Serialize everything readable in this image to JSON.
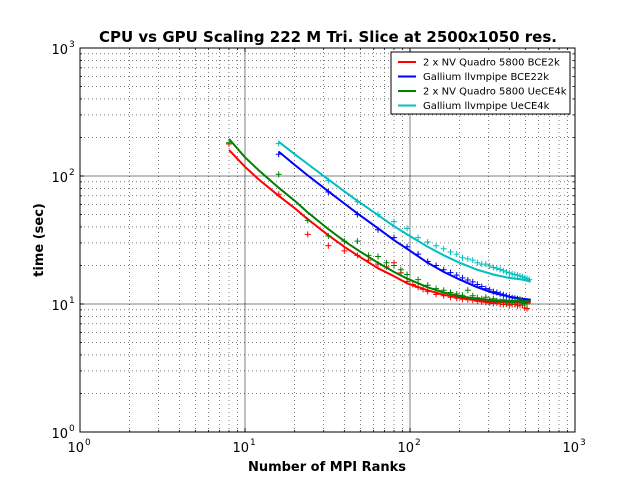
{
  "chart_data": {
    "type": "line",
    "title": "CPU vs GPU Scaling 222 M Tri. Slice at 2500x1050 res.",
    "xlabel": "Number of MPI Ranks",
    "ylabel": "time (sec)",
    "xscale": "log",
    "yscale": "log",
    "xlim": [
      1,
      1000
    ],
    "ylim": [
      1,
      1000
    ],
    "x_ticks": [
      {
        "base": "10",
        "exp": "0",
        "value": 1
      },
      {
        "base": "10",
        "exp": "1",
        "value": 10
      },
      {
        "base": "10",
        "exp": "2",
        "value": 100
      },
      {
        "base": "10",
        "exp": "3",
        "value": 1000
      }
    ],
    "y_ticks": [
      {
        "base": "10",
        "exp": "0",
        "value": 1
      },
      {
        "base": "10",
        "exp": "1",
        "value": 10
      },
      {
        "base": "10",
        "exp": "2",
        "value": 100
      },
      {
        "base": "10",
        "exp": "3",
        "value": 1000
      }
    ],
    "grid": {
      "major": true,
      "minor": true
    },
    "legend_position": "top-right",
    "series": [
      {
        "name": "2 x NV Quadro 5800 BCE2k",
        "color": "#ff0000",
        "x": [
          8,
          10,
          12,
          16,
          20,
          24,
          32,
          40,
          48,
          64,
          80,
          96,
          128,
          160,
          200,
          256,
          320,
          400,
          480,
          540
        ],
        "y": [
          160,
          118,
          95,
          70,
          56,
          46,
          34.5,
          28,
          24,
          19,
          16.5,
          14.5,
          12.8,
          11.8,
          11.2,
          10.7,
          10.4,
          10.3,
          10.3,
          10.3
        ],
        "markers": {
          "x": [
            8,
            16,
            24,
            32,
            40,
            48,
            56,
            64,
            72,
            80,
            88,
            96,
            104,
            112,
            120,
            128,
            144,
            160,
            176,
            192,
            208,
            224,
            240,
            256,
            272,
            288,
            304,
            320,
            336,
            352,
            368,
            384,
            400,
            416,
            432,
            448,
            464,
            480,
            496,
            512
          ],
          "y": [
            178,
            72,
            35,
            28.5,
            26,
            24,
            22,
            20.5,
            19.5,
            21,
            17.5,
            15,
            14.2,
            13.5,
            13,
            12.5,
            11.9,
            11.6,
            11.3,
            11.1,
            10.9,
            10.8,
            10.7,
            10.5,
            10.4,
            10.3,
            10.2,
            10.1,
            10.2,
            10,
            9.9,
            10,
            9.8,
            9.9,
            9.9,
            9.7,
            9.8,
            9.8,
            9.3,
            9.2
          ]
        }
      },
      {
        "name": "Gallium llvmpipe BCE22k",
        "color": "#0000ff",
        "x": [
          16,
          20,
          24,
          32,
          40,
          48,
          64,
          80,
          96,
          128,
          160,
          200,
          256,
          320,
          400,
          480,
          540
        ],
        "y": [
          155,
          122,
          101,
          76,
          61,
          51,
          39,
          31.5,
          27,
          21,
          17.8,
          15.5,
          13.5,
          12.2,
          11.4,
          11,
          10.8
        ],
        "markers": {
          "x": [
            16,
            32,
            48,
            64,
            80,
            96,
            112,
            128,
            144,
            160,
            176,
            192,
            208,
            224,
            240,
            256,
            272,
            288,
            304,
            320,
            336,
            352,
            368,
            384,
            400,
            416,
            432,
            448,
            464,
            480,
            496,
            512
          ],
          "y": [
            148,
            75,
            50,
            38,
            33,
            28,
            24.5,
            21.5,
            20,
            18.5,
            17.6,
            16.8,
            16,
            15.4,
            14.9,
            14.2,
            13.7,
            13.2,
            12.9,
            12.5,
            12.3,
            12,
            11.8,
            11.6,
            11.4,
            11.2,
            11.1,
            11,
            10.8,
            10.7,
            10.6,
            10.5
          ]
        }
      },
      {
        "name": "2 x NV Quadro 5800 UeCE4k",
        "color": "#008000",
        "x": [
          8,
          10,
          12,
          16,
          20,
          24,
          32,
          40,
          48,
          64,
          80,
          96,
          128,
          160,
          200,
          256,
          320,
          400,
          480,
          540
        ],
        "y": [
          195,
          140,
          112,
          81,
          64,
          52,
          38.5,
          31,
          26.5,
          21,
          17.8,
          15.8,
          13.5,
          12.3,
          11.5,
          11,
          10.7,
          10.6,
          10.5,
          10.5
        ],
        "markers": {
          "x": [
            8,
            16,
            24,
            32,
            40,
            48,
            56,
            64,
            72,
            80,
            88,
            96,
            112,
            128,
            144,
            160,
            176,
            192,
            208,
            224,
            240,
            256,
            272,
            288,
            304,
            320,
            336,
            352,
            368,
            384,
            400,
            416,
            432,
            448,
            464,
            480,
            496,
            512
          ],
          "y": [
            182,
            103,
            45,
            34,
            31,
            31,
            24,
            23.5,
            21,
            20,
            18.5,
            17,
            15.5,
            14,
            13.2,
            12.8,
            12.3,
            12,
            11.7,
            12.8,
            11.6,
            11.2,
            11,
            11.3,
            10.8,
            11,
            10.6,
            10.5,
            10.8,
            10.4,
            10.6,
            10.3,
            10.5,
            10.4,
            10.9,
            10.2,
            10.1,
            10
          ]
        }
      },
      {
        "name": "Gallium llvmpipe UeCE4k",
        "color": "#00bfbf",
        "x": [
          16,
          20,
          24,
          32,
          40,
          48,
          64,
          80,
          96,
          128,
          160,
          200,
          256,
          320,
          400,
          480,
          540
        ],
        "y": [
          185,
          148,
          124,
          94,
          76,
          64,
          49.5,
          40.5,
          35,
          28,
          24,
          21,
          18.5,
          17,
          16,
          15.5,
          15
        ],
        "markers": {
          "x": [
            16,
            32,
            48,
            64,
            80,
            96,
            112,
            128,
            144,
            160,
            176,
            192,
            208,
            224,
            240,
            256,
            272,
            288,
            304,
            320,
            336,
            352,
            368,
            384,
            400,
            416,
            432,
            448,
            464,
            480,
            496,
            512,
            528
          ],
          "y": [
            180,
            92,
            63,
            50,
            44,
            39,
            33,
            30.5,
            28.5,
            27,
            25.5,
            24.5,
            23,
            22.5,
            22,
            21,
            20.5,
            20.5,
            19.8,
            19.3,
            19,
            18.6,
            18.2,
            17.8,
            17.5,
            17.2,
            17,
            16.8,
            16.6,
            16.3,
            16,
            15.8,
            15.5
          ]
        }
      }
    ]
  }
}
